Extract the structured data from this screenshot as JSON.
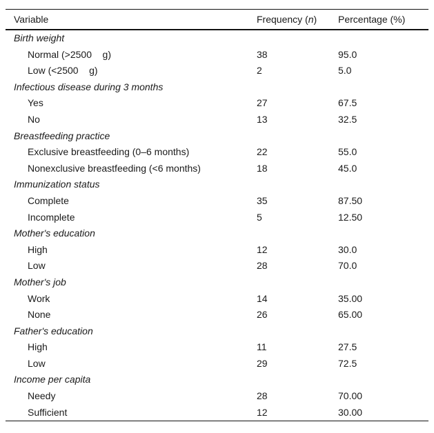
{
  "table": {
    "columns": {
      "variable": "Variable",
      "frequency_pre": "Frequency (",
      "frequency_n": "n",
      "frequency_post": ")",
      "percentage": "Percentage (%)"
    },
    "sections": [
      {
        "label": "Birth weight",
        "rows": [
          {
            "label": "Normal (>2500    g)",
            "n": "38",
            "pct": "95.0"
          },
          {
            "label": "Low (<2500    g)",
            "n": "2",
            "pct": "5.0"
          }
        ]
      },
      {
        "label": "Infectious disease during 3 months",
        "rows": [
          {
            "label": "Yes",
            "n": "27",
            "pct": "67.5"
          },
          {
            "label": "No",
            "n": "13",
            "pct": "32.5"
          }
        ]
      },
      {
        "label": "Breastfeeding practice",
        "rows": [
          {
            "label": "Exclusive breastfeeding (0–6 months)",
            "n": "22",
            "pct": "55.0"
          },
          {
            "label": "Nonexclusive breastfeeding (<6 months)",
            "n": "18",
            "pct": "45.0"
          }
        ]
      },
      {
        "label": "Immunization status",
        "rows": [
          {
            "label": "Complete",
            "n": "35",
            "pct": "87.50"
          },
          {
            "label": "Incomplete",
            "n": "5",
            "pct": "12.50"
          }
        ]
      },
      {
        "label": "Mother's education",
        "rows": [
          {
            "label": "High",
            "n": "12",
            "pct": "30.0"
          },
          {
            "label": "Low",
            "n": "28",
            "pct": "70.0"
          }
        ]
      },
      {
        "label": "Mother's job",
        "rows": [
          {
            "label": "Work",
            "n": "14",
            "pct": "35.00"
          },
          {
            "label": "None",
            "n": "26",
            "pct": "65.00"
          }
        ]
      },
      {
        "label": "Father's education",
        "rows": [
          {
            "label": "High",
            "n": "11",
            "pct": "27.5"
          },
          {
            "label": "Low",
            "n": "29",
            "pct": "72.5"
          }
        ]
      },
      {
        "label": "Income per capita",
        "rows": [
          {
            "label": "Needy",
            "n": "28",
            "pct": "70.00"
          },
          {
            "label": "Sufficient",
            "n": "12",
            "pct": "30.00"
          }
        ]
      }
    ]
  }
}
